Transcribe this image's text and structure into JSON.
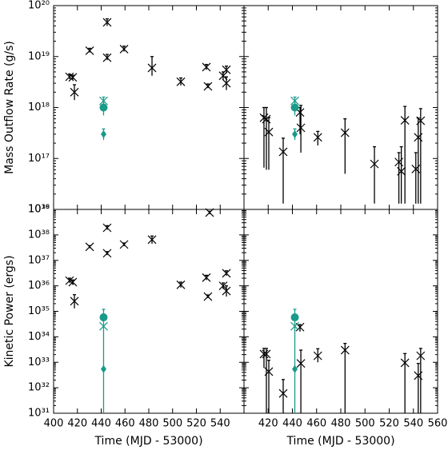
{
  "chart_data": [
    {
      "type": "scatter",
      "ylabel": "Mass Outflow Rate (g/s)",
      "log_scale": "y",
      "xtick_labels": false,
      "ytick_labels": true,
      "xlim": [
        400,
        560
      ],
      "xticks": [
        400,
        420,
        440,
        460,
        480,
        500,
        520,
        540
      ],
      "ylim": [
        1e+16,
        1e+20
      ],
      "yticks": [
        {
          "value": 1e+16,
          "label": "10¹⁶"
        },
        {
          "value": 1e+17,
          "label": "10¹⁷"
        },
        {
          "value": 1e+18,
          "label": "10¹⁸"
        },
        {
          "value": 1e+19,
          "label": "10¹⁹"
        },
        {
          "value": 1e+20,
          "label": "10²⁰"
        }
      ],
      "series": [
        {
          "color": "#000000",
          "marker": "x",
          "x": [
            413.4,
            416.1,
            417.5,
            430.3,
            445,
            445,
            459.2,
            482.7,
            506.9,
            528.4,
            529.7,
            542.5,
            545.2,
            545.2
          ],
          "values": [
            4e+18,
            3.9e+18,
            2e+18,
            1.3e+19,
            4.7e+19,
            9.5e+18,
            1.4e+19,
            6e+18,
            3.2e+18,
            6.2e+18,
            2.6e+18,
            4.2e+18,
            3e+18,
            5.5e+18
          ],
          "low": [
            3.6e+18,
            3.5e+18,
            1.4e+18,
            1.2e+19,
            4e+19,
            8.5e+18,
            1.25e+19,
            4.2e+18,
            2.7e+18,
            5.5e+18,
            2.4e+18,
            3.5e+18,
            2.2e+18,
            4.7e+18
          ],
          "high": [
            4.5e+18,
            4.3e+18,
            2.8e+18,
            1.45e+19,
            5.5e+19,
            1.1e+19,
            1.6e+19,
            1e+19,
            3.8e+18,
            7e+18,
            2.9e+18,
            5e+18,
            4e+18,
            6.5e+18
          ]
        },
        {
          "color": "#1a9a8a",
          "marker": "x",
          "x": [
            442
          ],
          "values": [
            1.35e+18
          ],
          "low": [
            1.2e+18
          ],
          "high": [
            1.6e+18
          ]
        },
        {
          "color": "#1a9a8a",
          "marker": "circle",
          "x": [
            442
          ],
          "values": [
            1e+18
          ],
          "low": [
            7e+17
          ],
          "high": [
            1.3e+18
          ]
        },
        {
          "color": "#1a9a8a",
          "marker": "diamond",
          "x": [
            442
          ],
          "values": [
            3e+17
          ],
          "low": [
            2.3e+17
          ],
          "high": [
            3.8e+17
          ]
        }
      ]
    },
    {
      "type": "scatter",
      "log_scale": "y",
      "xtick_labels": false,
      "ytick_labels": false,
      "xlim": [
        400,
        560
      ],
      "xticks": [
        420,
        440,
        460,
        480,
        500,
        520,
        540,
        560
      ],
      "ylim": [
        1e+16,
        1e+20
      ],
      "yticks": [
        1e+16,
        1e+17,
        1e+18,
        1e+19,
        1e+20
      ],
      "series": [
        {
          "color": "#000000",
          "marker": "x",
          "x": [
            416.5,
            418.5,
            420.5,
            432.4,
            446.3,
            447,
            461,
            483.5,
            507.8,
            528,
            530,
            533,
            542,
            544,
            546
          ],
          "values": [
            6.3e+17,
            5.9e+17,
            3.3e+17,
            1.35e+17,
            8e+17,
            4e+17,
            2.6e+17,
            3.2e+17,
            7.8e+16,
            8.5e+16,
            5.6e+16,
            5.6e+17,
            6.2e+16,
            2.6e+17,
            5.5e+17
          ],
          "low": [
            6.6e+16,
            6e+16,
            6e+16,
            1.3e+16,
            3e+17,
            1.3e+17,
            1.8e+17,
            5e+16,
            1.3e+16,
            1.3e+16,
            1.3e+16,
            1.3e+16,
            1.3e+16,
            1.3e+16,
            1.3e+16
          ],
          "high": [
            1e+18,
            1e+18,
            6.3e+17,
            2.5e+17,
            1e+18,
            1.1e+18,
            3.4e+17,
            6e+17,
            1.7e+17,
            1.3e+17,
            1.7e+17,
            1.05e+18,
            1.3e+17,
            6.2e+17,
            9.5e+17
          ]
        },
        {
          "color": "#1a9a8a",
          "marker": "x",
          "x": [
            442
          ],
          "values": [
            1.35e+18
          ],
          "low": [
            1.2e+18
          ],
          "high": [
            1.6e+18
          ]
        },
        {
          "color": "#1a9a8a",
          "marker": "circle",
          "x": [
            442
          ],
          "values": [
            1e+18
          ],
          "low": [
            7e+17
          ],
          "high": [
            1.3e+18
          ]
        },
        {
          "color": "#1a9a8a",
          "marker": "diamond",
          "x": [
            442
          ],
          "values": [
            3e+17
          ],
          "low": [
            2.3e+17
          ],
          "high": [
            3.8e+17
          ]
        }
      ]
    },
    {
      "type": "scatter",
      "ylabel": "Kinetic Power (ergs)",
      "xlabel": "Time (MJD - 53000)",
      "log_scale": "y",
      "xtick_labels": true,
      "ytick_labels": true,
      "xlim": [
        400,
        560
      ],
      "xticks": [
        400,
        420,
        440,
        460,
        480,
        500,
        520,
        540
      ],
      "ylim": [
        1e+31,
        1e+39
      ],
      "yticks": [
        {
          "value": 1e+31,
          "label": "10³¹"
        },
        {
          "value": 1e+32,
          "label": "10³²"
        },
        {
          "value": 1e+33,
          "label": "10³³"
        },
        {
          "value": 1e+34,
          "label": "10³⁴"
        },
        {
          "value": 1e+35,
          "label": "10³⁵"
        },
        {
          "value": 1e+36,
          "label": "10³⁶"
        },
        {
          "value": 1e+37,
          "label": "10³⁷"
        },
        {
          "value": 1e+38,
          "label": "10³⁸"
        },
        {
          "value": 1e+39,
          "label": "10³⁹"
        }
      ],
      "series": [
        {
          "color": "#000000",
          "marker": "x",
          "x": [
            413.4,
            416.1,
            417.5,
            430.3,
            445,
            445,
            459.2,
            482.7,
            506.9,
            528.4,
            531.1,
            529.7,
            542.5,
            545.2,
            545.2
          ],
          "values": [
            1.6e+36,
            1.4e+36,
            2.5e+35,
            3.4e+37,
            1.9e+38,
            1.9e+37,
            4.2e+37,
            6.5e+37,
            1.1e+36,
            2.1e+36,
            7.5e+38,
            3.8e+35,
            1e+36,
            3.1e+36,
            6.3e+35
          ],
          "low": [
            1.3e+36,
            1.1e+36,
            1.3e+35,
            3e+37,
            1.6e+38,
            1.6e+37,
            3.6e+37,
            4.5e+37,
            8.5e+35,
            1.7e+36,
            6.5e+38,
            3.3e+35,
            7.5e+35,
            2.5e+36,
            3.8e+35
          ],
          "high": [
            2e+36,
            1.7e+36,
            4.5e+35,
            3.8e+37,
            2.3e+38,
            2.2e+37,
            4.8e+37,
            9e+37,
            1.4e+36,
            2.6e+36,
            8.5e+38,
            4.4e+35,
            1.3e+36,
            3.9e+36,
            1e+36
          ]
        },
        {
          "color": "#1a9a8a",
          "marker": "x",
          "x": [
            442
          ],
          "values": [
            2.6e+34
          ],
          "low": [
            null
          ],
          "high": [
            null
          ]
        },
        {
          "color": "#1a9a8a",
          "marker": "circle",
          "x": [
            442
          ],
          "values": [
            5.8e+34
          ],
          "low": [
            1e+31
          ],
          "high": [
            1.2e+35
          ]
        },
        {
          "color": "#1a9a8a",
          "marker": "diamond",
          "x": [
            442
          ],
          "values": [
            5.4e+32
          ],
          "low": [
            null
          ],
          "high": [
            null
          ]
        }
      ]
    },
    {
      "type": "scatter",
      "xlabel": "Time (MJD - 53000)",
      "log_scale": "y",
      "xtick_labels": true,
      "ytick_labels": false,
      "xlim": [
        400,
        560
      ],
      "xticks": [
        420,
        440,
        460,
        480,
        500,
        520,
        540,
        560
      ],
      "ylim": [
        1e+31,
        1e+39
      ],
      "yticks": [
        1e+31,
        1e+32,
        1e+33,
        1e+34,
        1e+35,
        1e+36,
        1e+37,
        1e+38,
        1e+39
      ],
      "series": [
        {
          "color": "#000000",
          "marker": "x",
          "x": [
            416.5,
            418.5,
            420.5,
            432.4,
            446.3,
            447,
            461,
            483.5,
            533,
            544,
            546
          ],
          "values": [
            2.1e+33,
            2.1e+33,
            4.3e+32,
            6e+31,
            2.4e+34,
            9e+32,
            1.8e+33,
            3e+33,
            9.5e+32,
            3e+32,
            1.8e+33
          ],
          "low": [
            6e+32,
            1e+31,
            1e+31,
            1e+31,
            1.6e+34,
            1e+31,
            1e+33,
            1e+31,
            1e+31,
            1e+31,
            1e+31
          ],
          "high": [
            3.5e+33,
            3.5e+33,
            1.2e+33,
            2.1e+32,
            3e+34,
            3e+33,
            3.4e+33,
            5.5e+33,
            2.2e+33,
            9e+32,
            3.5e+33
          ]
        },
        {
          "color": "#1a9a8a",
          "marker": "x",
          "x": [
            442
          ],
          "values": [
            2.6e+34
          ],
          "low": [
            null
          ],
          "high": [
            null
          ]
        },
        {
          "color": "#1a9a8a",
          "marker": "circle",
          "x": [
            442
          ],
          "values": [
            5.8e+34
          ],
          "low": [
            1e+31
          ],
          "high": [
            1.2e+35
          ]
        },
        {
          "color": "#1a9a8a",
          "marker": "diamond",
          "x": [
            442
          ],
          "values": [
            5.4e+32
          ],
          "low": [
            null
          ],
          "high": [
            null
          ]
        }
      ]
    }
  ]
}
